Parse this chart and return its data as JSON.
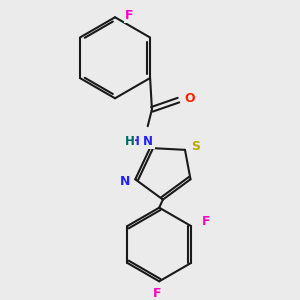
{
  "background_color": "#ebebeb",
  "bond_color": "#1a1a1a",
  "atom_colors": {
    "F": "#ff00cc",
    "O": "#ff2200",
    "N": "#2222ff",
    "S": "#bbaa00",
    "C": "#1a1a1a"
  },
  "figsize": [
    3.0,
    3.0
  ],
  "dpi": 100,
  "lw": 1.5,
  "off": 0.055
}
